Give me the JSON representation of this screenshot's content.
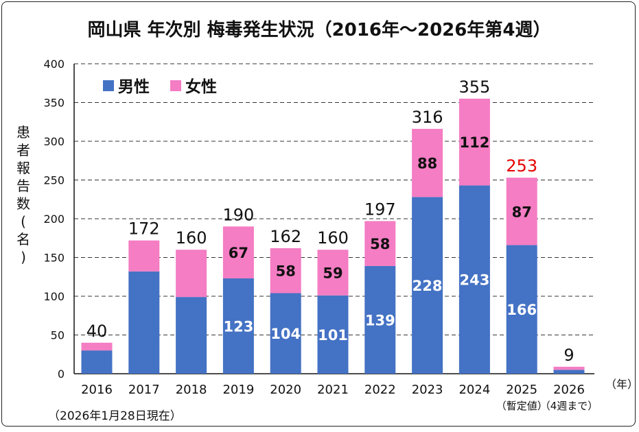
{
  "chart_data": {
    "type": "bar",
    "stacked": true,
    "title": "岡山県 年次別 梅毒発生状況（2016年～2026年第4週）",
    "ylabel": "患者報告数(名)",
    "xunit": "（年）",
    "ylim": [
      0,
      400
    ],
    "yticks": [
      0,
      50,
      100,
      150,
      200,
      250,
      300,
      350,
      400
    ],
    "grid": true,
    "legend_position": "top-left",
    "categories": [
      "2016",
      "2017",
      "2018",
      "2019",
      "2020",
      "2021",
      "2022",
      "2023",
      "2024",
      "2025",
      "2026"
    ],
    "category_notes": {
      "2025": "（暫定値）",
      "2026": "（4週まで）"
    },
    "series": [
      {
        "name": "男性",
        "color": "#4472C4",
        "values": [
          30,
          132,
          99,
          123,
          104,
          101,
          139,
          228,
          243,
          166,
          5
        ],
        "labels_shown": [
          false,
          false,
          false,
          true,
          true,
          true,
          true,
          true,
          true,
          true,
          false
        ]
      },
      {
        "name": "女性",
        "color": "#F47DC4",
        "values": [
          10,
          40,
          61,
          67,
          58,
          59,
          58,
          88,
          112,
          87,
          4
        ],
        "labels_shown": [
          false,
          false,
          false,
          true,
          true,
          true,
          true,
          true,
          true,
          true,
          false
        ]
      }
    ],
    "totals": [
      40,
      172,
      160,
      190,
      162,
      160,
      197,
      316,
      355,
      253,
      9
    ],
    "total_colors": {
      "default": "#111111",
      "2025": "#E60000"
    },
    "footnote": "（2026年1月28日現在）"
  }
}
